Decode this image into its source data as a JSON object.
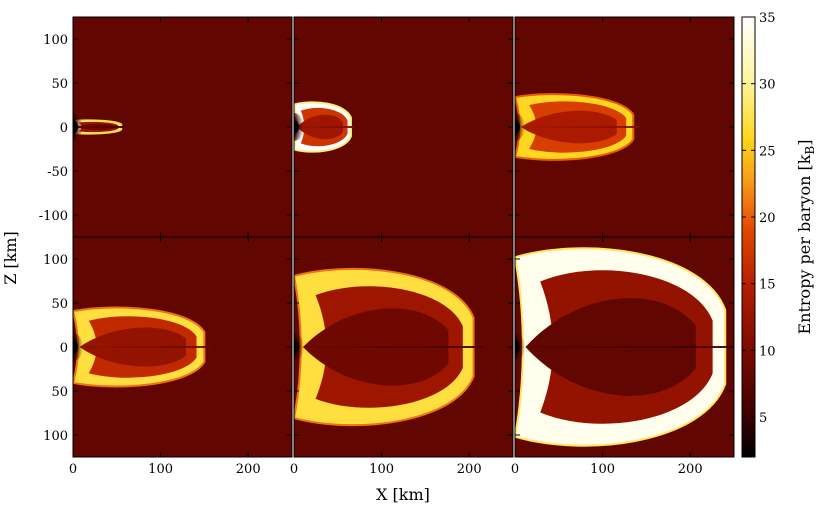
{
  "chart_data": {
    "type": "heatmap",
    "layout": "2x3 panel grid",
    "xlabel": "X [km]",
    "ylabel": "Z [km]",
    "xlim": [
      0,
      250
    ],
    "ylim": [
      -125,
      125
    ],
    "xticks": [
      0,
      100,
      200
    ],
    "xtick_labels": [
      "0",
      "100",
      "200"
    ],
    "yticks": [
      100,
      50,
      0,
      -50,
      -100
    ],
    "ytick_labels_top": [
      "100",
      "50",
      "0",
      "-50",
      "-100"
    ],
    "ytick_labels_bottom": [
      "100",
      "50",
      "0",
      "50",
      "100"
    ],
    "colorbar": {
      "label": "Entropy per baryon [k_B]",
      "label_main": "Entropy per baryon [k",
      "label_sub": "B",
      "label_end": "]",
      "range": [
        2,
        35
      ],
      "ticks": [
        5,
        10,
        15,
        20,
        25,
        30,
        35
      ],
      "tick_labels": [
        "5",
        "10",
        "15",
        "20",
        "25",
        "30",
        "35"
      ],
      "colormap_stops": [
        "#000000",
        "#3a0000",
        "#7a0a00",
        "#b51e00",
        "#e34a00",
        "#f7961b",
        "#ffd41a",
        "#fff59a",
        "#ffffff"
      ]
    },
    "background_entropy": 8,
    "panels": [
      {
        "extent_x": 55,
        "extent_z": 8,
        "shell_entropy": 33,
        "interior_entropy": 9
      },
      {
        "extent_x": 65,
        "extent_z": 30,
        "shell_entropy": 35,
        "interior_entropy": 13
      },
      {
        "extent_x": 135,
        "extent_z": 40,
        "shell_entropy": 26,
        "interior_entropy": 14
      },
      {
        "extent_x": 150,
        "extent_z": 48,
        "shell_entropy": 27,
        "interior_entropy": 12
      },
      {
        "extent_x": 205,
        "extent_z": 95,
        "shell_entropy": 27,
        "interior_entropy": 9
      },
      {
        "extent_x": 240,
        "extent_z": 120,
        "shell_entropy": 34,
        "interior_entropy": 8
      }
    ]
  }
}
